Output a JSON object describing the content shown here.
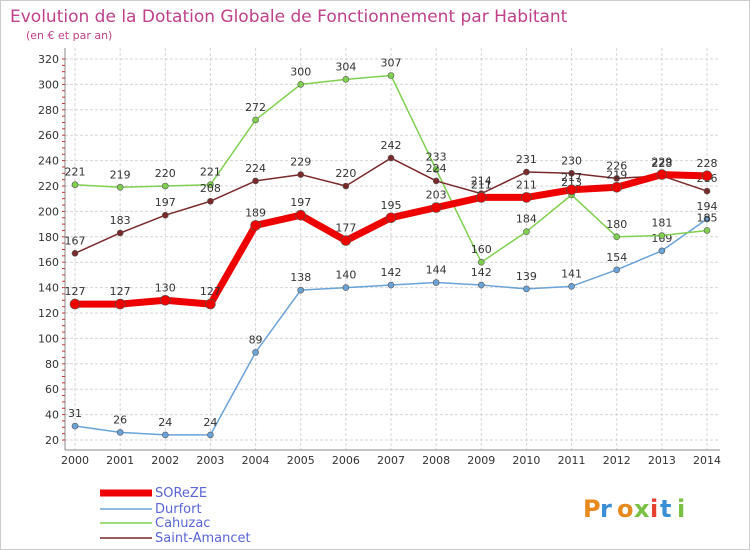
{
  "chart_data": {
    "type": "line",
    "title": "Evolution de la Dotation Globale de Fonctionnement par Habitant",
    "subtitle": "(en € et par an)",
    "xlabel": "",
    "ylabel": "",
    "x": [
      2000,
      2001,
      2002,
      2003,
      2004,
      2005,
      2006,
      2007,
      2008,
      2009,
      2010,
      2011,
      2012,
      2013,
      2014
    ],
    "ylim": [
      20,
      320
    ],
    "y_ticks": [
      20,
      40,
      60,
      80,
      100,
      120,
      140,
      160,
      180,
      200,
      220,
      240,
      260,
      280,
      300,
      320
    ],
    "grid": true,
    "legend_position": "bottom-left",
    "series": [
      {
        "name": "SOREZE",
        "color": "#ee0000",
        "values": [
          127,
          127,
          130,
          127,
          189,
          197,
          177,
          195,
          203,
          211,
          211,
          217,
          219,
          229,
          228
        ]
      },
      {
        "name": "Durfort",
        "color": "#6aa3d8",
        "values": [
          31,
          26,
          24,
          24,
          89,
          138,
          140,
          142,
          144,
          142,
          139,
          141,
          154,
          169,
          194
        ]
      },
      {
        "name": "Cahuzac",
        "color": "#80d050",
        "values": [
          221,
          219,
          220,
          221,
          272,
          300,
          304,
          307,
          233,
          160,
          184,
          213,
          180,
          181,
          185
        ]
      },
      {
        "name": "Saint-Amancet",
        "color": "#7a2a2a",
        "values": [
          167,
          183,
          197,
          208,
          224,
          229,
          220,
          242,
          224,
          214,
          231,
          230,
          226,
          228,
          216
        ]
      }
    ]
  },
  "legend": {
    "labels": [
      "SOReZE",
      "Durfort",
      "Cahuzac",
      "Saint-Amancet"
    ]
  },
  "logo": {
    "text": "Proxiti"
  }
}
